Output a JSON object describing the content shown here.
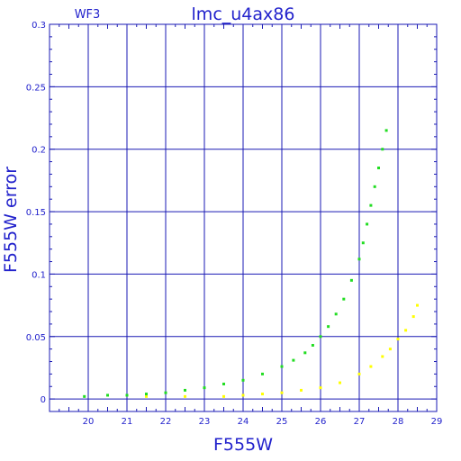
{
  "chart_data": {
    "type": "scatter",
    "title": "lmc_u4ax86",
    "corner_label": "WF3",
    "xlabel": "F555W",
    "ylabel": "F555W error",
    "xlim": [
      19,
      29
    ],
    "ylim": [
      -0.01,
      0.3
    ],
    "x_ticks": [
      "20",
      "21",
      "22",
      "23",
      "24",
      "25",
      "26",
      "27",
      "28",
      "29"
    ],
    "y_ticks": [
      "0",
      "0.05",
      "0.1",
      "0.15",
      "0.2",
      "0.25",
      "0.3"
    ],
    "grid": true,
    "colors": {
      "frame": "#1a1ab4",
      "text": "#2222cc",
      "green": "#22dd22",
      "yellow": "#ffff00"
    },
    "series": [
      {
        "color": "#22dd22",
        "x": [
          19.9,
          20.5,
          21.0,
          21.5,
          22.0,
          22.5,
          23.0,
          23.5,
          24.0,
          24.5,
          25.0,
          25.3,
          25.6,
          25.8,
          26.0,
          26.2,
          26.4,
          26.6,
          26.8,
          27.0,
          27.1,
          27.2,
          27.3,
          27.4,
          27.5,
          27.6,
          27.7
        ],
        "y": [
          0.002,
          0.003,
          0.003,
          0.004,
          0.005,
          0.007,
          0.009,
          0.012,
          0.015,
          0.02,
          0.026,
          0.031,
          0.037,
          0.043,
          0.05,
          0.058,
          0.068,
          0.08,
          0.095,
          0.112,
          0.125,
          0.14,
          0.155,
          0.17,
          0.185,
          0.2,
          0.215
        ]
      },
      {
        "color": "#ffff00",
        "x": [
          21.5,
          22.5,
          23.5,
          24.0,
          24.5,
          25.0,
          25.5,
          26.0,
          26.5,
          27.0,
          27.3,
          27.6,
          27.8,
          28.0,
          28.2,
          28.4,
          28.5
        ],
        "y": [
          0.002,
          0.002,
          0.002,
          0.003,
          0.004,
          0.005,
          0.007,
          0.009,
          0.013,
          0.02,
          0.026,
          0.034,
          0.04,
          0.048,
          0.055,
          0.066,
          0.075
        ]
      }
    ]
  }
}
